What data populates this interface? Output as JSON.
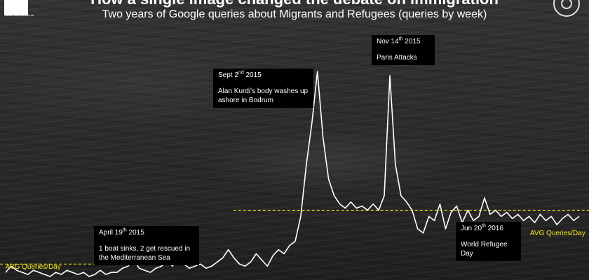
{
  "header": {
    "title": "How a single image changed the debate on immigration",
    "subtitle": "Two years of Google queries about Migrants and Refugees (queries by week)",
    "logo_text": "Visual Social Media Lab"
  },
  "annotations": {
    "a1": {
      "date_main": "April 19",
      "date_sup": "th",
      "date_year": " 2015",
      "text": "1 boat sinks, 2 get rescued in the Mediterranean Sea"
    },
    "a2": {
      "date_main": "Sept 2",
      "date_sup": "nd",
      "date_year": " 2015",
      "text": "Alan Kurdi's body washes up ashore in Bodrum"
    },
    "a3": {
      "date_main": "Nov 14",
      "date_sup": "th",
      "date_year": " 2015",
      "text": "Paris Attacks"
    },
    "a4": {
      "date_main": "Jun 20",
      "date_sup": "th",
      "date_year": " 2016",
      "text": "World Refugee Day"
    }
  },
  "avg_labels": {
    "before": "AVG Queries/Day",
    "after": "AVG Queries/Day"
  },
  "colors": {
    "line": "#ffffff",
    "avg": "#f5e21a",
    "box": "#000000"
  },
  "chart_data": {
    "type": "line",
    "title": "How a single image changed the debate on immigration",
    "subtitle": "Two years of Google queries about Migrants and Refugees (queries by week)",
    "x": [
      1,
      2,
      3,
      4,
      5,
      6,
      7,
      8,
      9,
      10,
      11,
      12,
      13,
      14,
      15,
      16,
      17,
      18,
      19,
      20,
      21,
      22,
      23,
      24,
      25,
      26,
      27,
      28,
      29,
      30,
      31,
      32,
      33,
      34,
      35,
      36,
      37,
      38,
      39,
      40,
      41,
      42,
      43,
      44,
      45,
      46,
      47,
      48,
      49,
      50,
      51,
      52,
      53,
      54,
      55,
      56,
      57,
      58,
      59,
      60,
      61,
      62,
      63,
      64,
      65,
      66,
      67,
      68,
      69,
      70,
      71,
      72,
      73,
      74,
      75,
      76,
      77,
      78,
      79,
      80,
      81,
      82,
      83,
      84,
      85,
      86,
      87,
      88,
      89,
      90,
      91,
      92,
      93,
      94,
      95,
      96,
      97,
      98,
      99,
      100,
      101,
      102,
      103,
      104
    ],
    "values": [
      3,
      6,
      4,
      3,
      2,
      4,
      3,
      2,
      1,
      3,
      2,
      4,
      3,
      2,
      3,
      1,
      2,
      4,
      2,
      3,
      3,
      5,
      6,
      9,
      5,
      4,
      3,
      5,
      6,
      8,
      6,
      12,
      7,
      5,
      6,
      7,
      5,
      6,
      8,
      10,
      14,
      10,
      7,
      6,
      8,
      12,
      9,
      6,
      11,
      14,
      12,
      16,
      18,
      30,
      55,
      75,
      100,
      68,
      48,
      40,
      36,
      34,
      37,
      34,
      35,
      33,
      36,
      33,
      40,
      98,
      55,
      40,
      37,
      33,
      24,
      22,
      30,
      28,
      36,
      24,
      32,
      35,
      27,
      33,
      28,
      30,
      39,
      31,
      33,
      30,
      32,
      29,
      31,
      28,
      30,
      27,
      31,
      28,
      30,
      26,
      29,
      31,
      28,
      30
    ],
    "averages": [
      {
        "label": "AVG Queries/Day",
        "from_week": 1,
        "to_week": 57,
        "value": 7
      },
      {
        "label": "AVG Queries/Day",
        "from_week": 57,
        "to_week": 104,
        "value": 33
      }
    ],
    "xlabel": "",
    "ylabel": "",
    "grid": false,
    "legend": "none"
  }
}
